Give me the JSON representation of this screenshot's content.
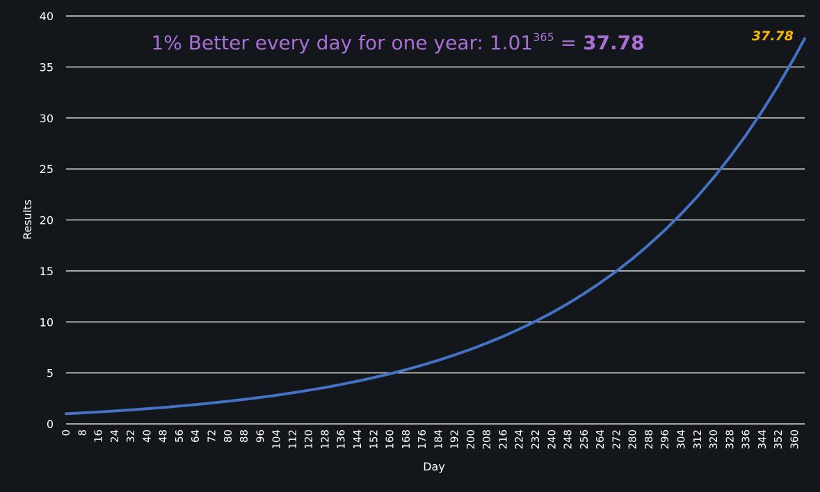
{
  "chart_data": {
    "type": "line",
    "title": {
      "prefix": "1% Better every day for one year: 1.01",
      "superscript": "365",
      "equals": " = ",
      "result": "37.78"
    },
    "xlabel": "Day",
    "ylabel": "Results",
    "x_ticks": [
      "0",
      "8",
      "16",
      "24",
      "32",
      "40",
      "48",
      "56",
      "64",
      "72",
      "80",
      "88",
      "96",
      "104",
      "112",
      "120",
      "128",
      "136",
      "144",
      "152",
      "160",
      "168",
      "176",
      "184",
      "192",
      "200",
      "208",
      "216",
      "224",
      "232",
      "240",
      "248",
      "256",
      "264",
      "272",
      "280",
      "288",
      "296",
      "304",
      "312",
      "320",
      "328",
      "336",
      "344",
      "352",
      "360"
    ],
    "y_ticks": [
      "0",
      "5",
      "10",
      "15",
      "20",
      "25",
      "30",
      "35",
      "40"
    ],
    "ylim": [
      0,
      40
    ],
    "xlim": [
      0,
      365
    ],
    "grid": true,
    "series": [
      {
        "formula": "1.01^day",
        "color": "#4472c4",
        "x": [
          0,
          8,
          16,
          24,
          32,
          40,
          48,
          56,
          64,
          72,
          80,
          88,
          96,
          104,
          112,
          120,
          128,
          136,
          144,
          152,
          160,
          168,
          176,
          184,
          192,
          200,
          208,
          216,
          224,
          232,
          240,
          248,
          256,
          264,
          272,
          280,
          288,
          296,
          304,
          312,
          320,
          328,
          336,
          344,
          352,
          360,
          365
        ],
        "values": [
          1.0,
          1.08,
          1.17,
          1.27,
          1.37,
          1.49,
          1.61,
          1.75,
          1.89,
          2.05,
          2.22,
          2.4,
          2.6,
          2.81,
          3.05,
          3.3,
          3.57,
          3.87,
          4.19,
          4.54,
          4.91,
          5.32,
          5.76,
          6.24,
          6.76,
          7.32,
          7.93,
          8.58,
          9.3,
          10.07,
          10.89,
          11.8,
          12.78,
          13.84,
          14.98,
          16.22,
          17.57,
          19.02,
          20.6,
          22.3,
          24.15,
          26.16,
          28.32,
          30.67,
          33.21,
          35.96,
          37.78
        ]
      }
    ],
    "end_label": "37.78"
  },
  "colors": {
    "background": "#13171b",
    "grid": "#d9d9d9",
    "text": "#ffffff",
    "title": "#a86fd6",
    "line": "#4472c4",
    "end_label": "#f5b800"
  }
}
